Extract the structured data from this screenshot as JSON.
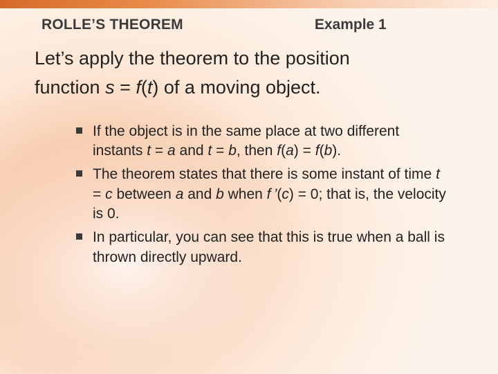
{
  "colors": {
    "topbar_start": "#d66a2b",
    "topbar_end": "#fdeee2",
    "bg_warm": "#f8b38a",
    "bg_light": "#fdf3ea",
    "text": "#222222",
    "heading": "#3a3a3a",
    "bullet_square": "#3a3a3a"
  },
  "typography": {
    "heading_fontsize": 21,
    "body_fontsize": 27,
    "bullet_fontsize": 21,
    "font_family": "Arial"
  },
  "header": {
    "section_title": "ROLLE’S THEOREM",
    "example_label": "Example 1"
  },
  "body": {
    "line1_a": "Let’s apply the theorem to the position",
    "line2_a": "function ",
    "line2_s": "s",
    "line2_eq": " = ",
    "line2_f": "f",
    "line2_paren_open": "(",
    "line2_t": "t",
    "line2_paren_close": ")",
    "line2_b": " of a moving object."
  },
  "bullets": [
    {
      "parts": [
        {
          "t": "If the object is in the same place at two different instants "
        },
        {
          "t": "t",
          "i": true
        },
        {
          "t": " = "
        },
        {
          "t": "a",
          "i": true
        },
        {
          "t": " and "
        },
        {
          "t": "t",
          "i": true
        },
        {
          "t": " = "
        },
        {
          "t": "b",
          "i": true
        },
        {
          "t": ", then "
        },
        {
          "t": "f",
          "i": true
        },
        {
          "t": "("
        },
        {
          "t": "a",
          "i": true
        },
        {
          "t": ") = "
        },
        {
          "t": "f",
          "i": true
        },
        {
          "t": "("
        },
        {
          "t": "b",
          "i": true
        },
        {
          "t": ")."
        }
      ]
    },
    {
      "parts": [
        {
          "t": "The theorem states that there is some instant of time "
        },
        {
          "t": "t",
          "i": true
        },
        {
          "t": " = "
        },
        {
          "t": "c",
          "i": true
        },
        {
          "t": " between "
        },
        {
          "t": "a",
          "i": true
        },
        {
          "t": " and "
        },
        {
          "t": "b",
          "i": true
        },
        {
          "t": " when "
        },
        {
          "t": "f ’",
          "i": true
        },
        {
          "t": "("
        },
        {
          "t": "c",
          "i": true
        },
        {
          "t": ") = 0; that is, the velocity is 0."
        }
      ]
    },
    {
      "parts": [
        {
          "t": "In particular, you can see that this is true when a ball is thrown directly upward."
        }
      ]
    }
  ]
}
